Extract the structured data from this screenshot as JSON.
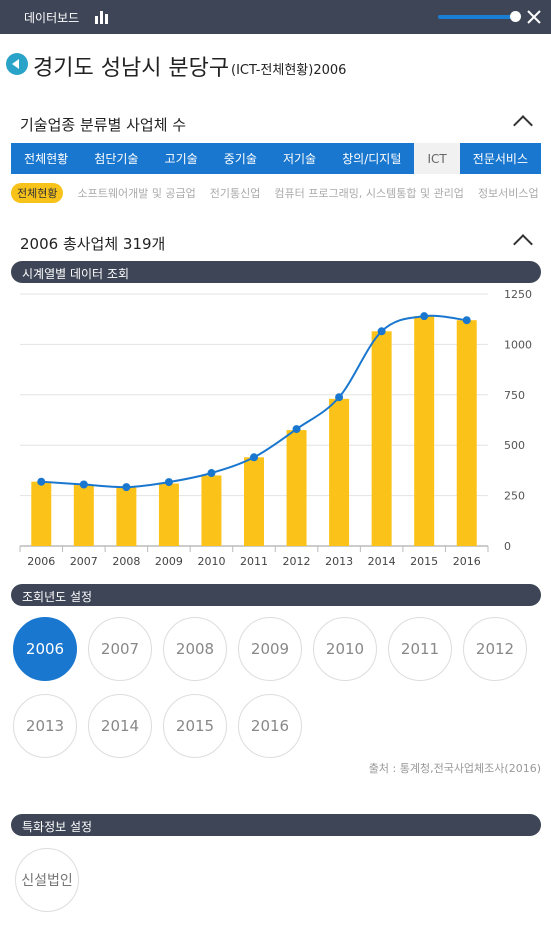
{
  "topbar": {
    "title": "데이터보드"
  },
  "page": {
    "title": "경기도 성남시 분당구",
    "subtitle": "(ICT-전체현황)2006"
  },
  "tech_section": {
    "title": "기술업종 분류별 사업체 수"
  },
  "tabs": [
    {
      "label": "전체현황"
    },
    {
      "label": "첨단기술"
    },
    {
      "label": "고기술"
    },
    {
      "label": "중기술"
    },
    {
      "label": "저기술"
    },
    {
      "label": "창의/디지털"
    },
    {
      "label": "ICT"
    },
    {
      "label": "전문서비스"
    }
  ],
  "active_tab_index": 6,
  "subtabs": [
    {
      "label": "전체현황"
    },
    {
      "label": "소프트웨어개발 및 공급업"
    },
    {
      "label": "전기통신업"
    },
    {
      "label": "컴퓨터 프로그래밍, 시스템통합 및 관리업"
    },
    {
      "label": "정보서비스업"
    }
  ],
  "total_section": {
    "title": "2006 총사업체 319개"
  },
  "timeseries_header": "시계열별 데이터 조회",
  "chart_data": {
    "type": "bar",
    "categories": [
      "2006",
      "2007",
      "2008",
      "2009",
      "2010",
      "2011",
      "2012",
      "2013",
      "2014",
      "2015",
      "2016"
    ],
    "values": [
      319,
      305,
      292,
      310,
      350,
      440,
      575,
      730,
      1065,
      1140,
      1120
    ],
    "line_values": [
      319,
      305,
      292,
      317,
      362,
      440,
      580,
      738,
      1065,
      1140,
      1120
    ],
    "ylim": [
      0,
      1250
    ],
    "yticks": [
      0,
      250,
      500,
      750,
      1000,
      1250
    ],
    "bar_color": "#fbc31a",
    "line_color": "#1a77cf",
    "grid": true
  },
  "year_setting_header": "조회년도 설정",
  "years": [
    {
      "label": "2006",
      "active": true
    },
    {
      "label": "2007"
    },
    {
      "label": "2008"
    },
    {
      "label": "2009"
    },
    {
      "label": "2010"
    },
    {
      "label": "2011"
    },
    {
      "label": "2012"
    },
    {
      "label": "2013"
    },
    {
      "label": "2014"
    },
    {
      "label": "2015"
    },
    {
      "label": "2016"
    }
  ],
  "source": "출처 : 통계청,전국사업체조사(2016)",
  "special_header": "특화정보 설정",
  "special_button": "신설법인"
}
